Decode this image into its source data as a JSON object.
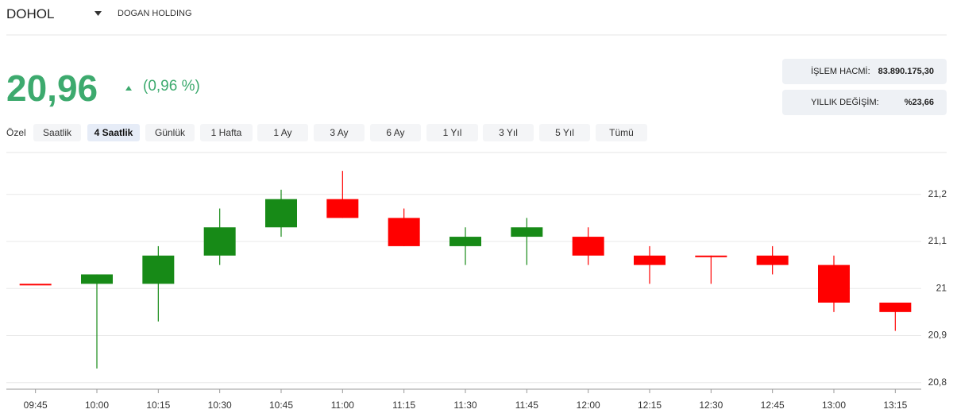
{
  "header": {
    "symbol": "DOHOL",
    "company": "DOGAN HOLDING",
    "price": "20,96",
    "change": "(0,96 %)",
    "stats": [
      {
        "label": "İŞLEM HACMİ:",
        "value": "83.890.175,30"
      },
      {
        "label": "YILLIK DEĞİŞİM:",
        "value": "%23,66"
      }
    ]
  },
  "tabs": [
    "Özel",
    "Saatlik",
    "4 Saatlik",
    "Günlük",
    "1 Hafta",
    "1 Ay",
    "3 Ay",
    "6 Ay",
    "1 Yıl",
    "3 Yıl",
    "5 Yıl",
    "Tümü"
  ],
  "active_tab": "4 Saatlik",
  "chart_data": {
    "type": "candlestick",
    "categories": [
      "09:45",
      "10:00",
      "10:15",
      "10:30",
      "10:45",
      "11:00",
      "11:15",
      "11:30",
      "11:45",
      "12:00",
      "12:15",
      "12:30",
      "12:45",
      "13:00",
      "13:15"
    ],
    "open": [
      21.01,
      21.01,
      21.01,
      21.07,
      21.13,
      21.19,
      21.15,
      21.09,
      21.11,
      21.11,
      21.07,
      21.07,
      21.07,
      21.05,
      20.97
    ],
    "high": [
      21.01,
      21.03,
      21.09,
      21.17,
      21.21,
      21.25,
      21.17,
      21.13,
      21.15,
      21.13,
      21.09,
      21.07,
      21.09,
      21.07,
      20.97
    ],
    "low": [
      21.01,
      20.83,
      20.93,
      21.05,
      21.11,
      21.15,
      21.09,
      21.05,
      21.05,
      21.05,
      21.01,
      21.01,
      21.03,
      20.95,
      20.91
    ],
    "close": [
      21.01,
      21.03,
      21.07,
      21.13,
      21.19,
      21.15,
      21.09,
      21.11,
      21.13,
      21.07,
      21.05,
      21.07,
      21.05,
      20.97,
      20.95
    ],
    "up_color": "#178a17",
    "down_color": "#ff0000",
    "ylim": [
      20.786,
      21.284
    ],
    "yticks": [
      {
        "value": 20.8,
        "label": "20,8"
      },
      {
        "value": 20.9,
        "label": "20,9"
      },
      21,
      {
        "value": 21.1,
        "label": "21,1"
      },
      {
        "value": 21.2,
        "label": "21,2"
      }
    ],
    "grid": true
  }
}
